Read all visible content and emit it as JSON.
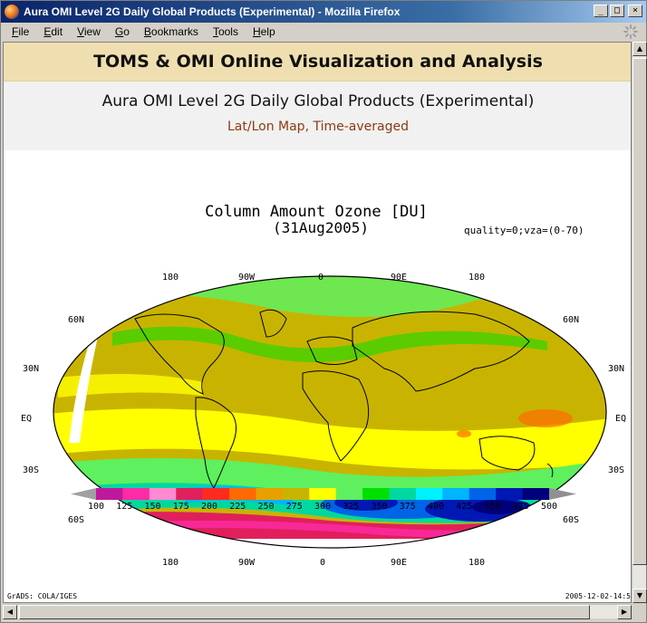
{
  "window": {
    "title": "Aura OMI Level 2G Daily Global Products (Experimental) - Mozilla Firefox",
    "buttons": {
      "minimize": "_",
      "maximize": "□",
      "close": "×"
    }
  },
  "menu": [
    {
      "label": "File"
    },
    {
      "label": "Edit"
    },
    {
      "label": "View"
    },
    {
      "label": "Go"
    },
    {
      "label": "Bookmarks"
    },
    {
      "label": "Tools"
    },
    {
      "label": "Help"
    }
  ],
  "page": {
    "banner": "TOMS & OMI Online Visualization and Analysis",
    "product_title": "Aura OMI Level 2G Daily Global Products (Experimental)",
    "map_type": "Lat/Lon Map, Time-averaged"
  },
  "plot": {
    "title": "Column Amount Ozone [DU]",
    "date": "(31Aug2005)",
    "qualifier": "quality=0;vza=(0-70)",
    "lon_labels_top": [
      "180",
      "90W",
      "0",
      "90E",
      "180"
    ],
    "lon_labels_bottom": [
      "180",
      "90W",
      "0",
      "90E",
      "180"
    ],
    "lat_labels": [
      "60N",
      "30N",
      "EQ",
      "30S",
      "60S"
    ],
    "colorbar": {
      "labels": [
        "100",
        "125",
        "150",
        "175",
        "200",
        "225",
        "250",
        "275",
        "300",
        "325",
        "350",
        "375",
        "400",
        "425",
        "450",
        "475",
        "500"
      ],
      "colors": [
        "#a0a0a0",
        "#c0189c",
        "#ff2aa8",
        "#ff8ad2",
        "#e0205c",
        "#ff2a1e",
        "#ff6a00",
        "#e8a000",
        "#c8b400",
        "#ffff00",
        "#5ef05e",
        "#00e000",
        "#00d8a0",
        "#00f0ff",
        "#00b4ff",
        "#0064e6",
        "#0018b4",
        "#00007a",
        "#909090"
      ]
    },
    "footer_left": "GrADS: COLA/IGES",
    "footer_right": "2005-12-02-14:5"
  },
  "colors": {
    "banner_bg": "#efdfb0",
    "subhead_bg": "#f1f1f1",
    "map_type_text": "#8b3a10",
    "title_bar": "#0a246a"
  }
}
